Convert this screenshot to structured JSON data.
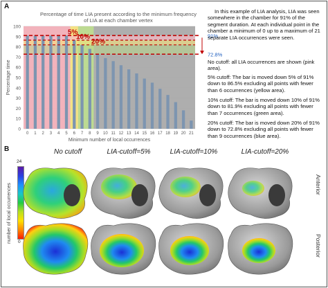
{
  "panel_a_letter": "A",
  "panel_b_letter": "B",
  "chart_data": {
    "type": "bar",
    "title": "Percentage of time LIA present according to the minimum frequency of LIA at each chamber vertex",
    "xlabel": "Minimum number of local occurrences",
    "ylabel": "Percentage time",
    "xlim": [
      0,
      22
    ],
    "ylim": [
      0,
      100
    ],
    "yticks": [
      0,
      10,
      20,
      30,
      40,
      50,
      60,
      70,
      80,
      90,
      100
    ],
    "x": [
      0,
      1,
      2,
      3,
      4,
      5,
      6,
      7,
      8,
      9,
      10,
      11,
      12,
      13,
      14,
      15,
      16,
      17,
      18,
      19,
      20,
      21
    ],
    "values": [
      91,
      91,
      91,
      91,
      91,
      91,
      86.5,
      81.9,
      78,
      72.8,
      69,
      66,
      62,
      58,
      54,
      49,
      45,
      39,
      33,
      26,
      18,
      8
    ],
    "reference_lines": [
      {
        "label": "91%",
        "value": 91
      },
      {
        "label": "72.8%",
        "value": 72.8
      }
    ],
    "cutoff_labels": [
      "5%",
      "10%",
      "20%"
    ],
    "colors": {
      "pink_area": "#f4aeb8",
      "yellow_area": "#f6e27a",
      "green_area": "#b9d98a",
      "blue_area": "#b8d0ea",
      "bar": "#7d95b0",
      "dash": "#c00000"
    }
  },
  "description": {
    "p1": "In this example of LIA analysis, LIA was seen somewhere in the chamber for 91% of the segment duration. At each individual point in the chamber a minimum of 0 up to a maximum of 21 separate LIA occurrences were seen.",
    "p2": "No cutoff: all LIA occurrences are shown (pink area).",
    "p3": "5% cutoff: The bar is moved down 5% of 91% down to 86.5% excluding all points with fewer than 6 occurrences (yellow area).",
    "p4": "10% cutoff: The bar is moved down 10% of 91% down to 81.9% excluding all points with fewer than 7 occurrences (green area).",
    "p5": "20% cutoff: The bar is moved down 20% of 91% down to 72.8% excluding all points with fewer than 9 occurrences (blue area)."
  },
  "panel_b": {
    "columns": [
      "No cutoff",
      "LIA-cutoff=5%",
      "LIA-cutoff=10%",
      "LIA-cutoff=20%"
    ],
    "rows": [
      "Anterior",
      "Posterior"
    ],
    "colorbar_label": "number of local occurrences",
    "colorbar_max": "24",
    "colorbar_min": "0"
  }
}
